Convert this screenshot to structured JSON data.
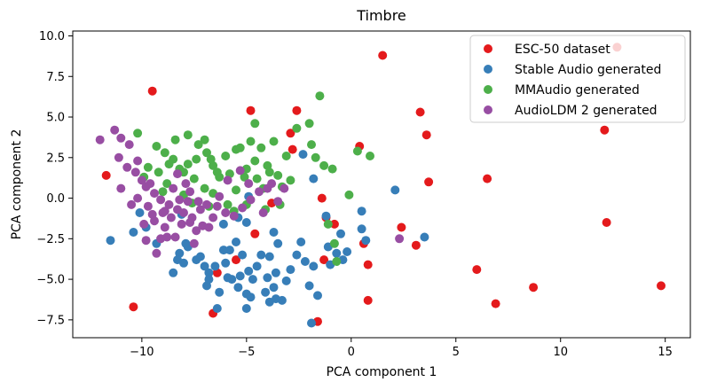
{
  "chart_data": {
    "type": "scatter",
    "title": "Timbre",
    "xlabel": "PCA component 1",
    "ylabel": "PCA component 2",
    "xlim": [
      -13.3,
      16.2
    ],
    "ylim": [
      -8.6,
      10.3
    ],
    "xticks": [
      -10,
      -5,
      0,
      5,
      10,
      15
    ],
    "xtick_labels": [
      "−10",
      "−5",
      "0",
      "5",
      "10",
      "15"
    ],
    "yticks": [
      -7.5,
      -5.0,
      -2.5,
      0.0,
      2.5,
      5.0,
      7.5,
      10.0
    ],
    "ytick_labels": [
      "−7.5",
      "−5.0",
      "−2.5",
      "0.0",
      "2.5",
      "5.0",
      "7.5",
      "10.0"
    ],
    "grid": false,
    "legend_position": "top-right",
    "series": [
      {
        "name": "ESC-50 dataset",
        "color": "#e41a1c",
        "points": [
          [
            12.7,
            9.3
          ],
          [
            1.5,
            8.8
          ],
          [
            -9.5,
            6.6
          ],
          [
            3.3,
            5.3
          ],
          [
            12.1,
            4.2
          ],
          [
            3.6,
            3.9
          ],
          [
            -2.6,
            5.4
          ],
          [
            -4.8,
            5.4
          ],
          [
            -2.9,
            4.0
          ],
          [
            -2.8,
            3.0
          ],
          [
            0.4,
            3.2
          ],
          [
            -11.7,
            1.4
          ],
          [
            3.7,
            1.0
          ],
          [
            6.5,
            1.2
          ],
          [
            -1.4,
            0.0
          ],
          [
            -3.8,
            -0.3
          ],
          [
            12.2,
            -1.5
          ],
          [
            -1.2,
            -1.2
          ],
          [
            2.4,
            -1.8
          ],
          [
            -0.8,
            -1.6
          ],
          [
            0.6,
            -2.8
          ],
          [
            3.1,
            -2.9
          ],
          [
            -1.3,
            -3.8
          ],
          [
            0.8,
            -4.1
          ],
          [
            -4.6,
            -2.2
          ],
          [
            -6.4,
            -4.6
          ],
          [
            6.0,
            -4.4
          ],
          [
            8.7,
            -5.5
          ],
          [
            14.8,
            -5.4
          ],
          [
            0.8,
            -6.3
          ],
          [
            6.9,
            -6.5
          ],
          [
            -10.4,
            -6.7
          ],
          [
            -6.6,
            -7.1
          ],
          [
            -1.6,
            -7.6
          ],
          [
            -5.5,
            -3.8
          ]
        ]
      },
      {
        "name": "Stable Audio generated",
        "color": "#377eb8",
        "points": [
          [
            -11.5,
            -2.6
          ],
          [
            -10.4,
            -2.1
          ],
          [
            -9.8,
            -1.8
          ],
          [
            -10.1,
            -0.9
          ],
          [
            -9.3,
            -2.8
          ],
          [
            -8.0,
            -4.0
          ],
          [
            -8.5,
            -4.6
          ],
          [
            -8.2,
            -3.4
          ],
          [
            -7.8,
            -3.0
          ],
          [
            -7.4,
            -3.8
          ],
          [
            -7.0,
            -4.2
          ],
          [
            -6.8,
            -4.6
          ],
          [
            -6.9,
            -5.4
          ],
          [
            -6.3,
            -5.8
          ],
          [
            -6.0,
            -4.0
          ],
          [
            -5.8,
            -3.2
          ],
          [
            -5.7,
            -5.0
          ],
          [
            -5.4,
            -5.5
          ],
          [
            -5.3,
            -4.8
          ],
          [
            -5.0,
            -5.9
          ],
          [
            -4.7,
            -5.0
          ],
          [
            -4.5,
            -4.2
          ],
          [
            -4.3,
            -3.5
          ],
          [
            -4.1,
            -5.8
          ],
          [
            -3.9,
            -6.4
          ],
          [
            -3.7,
            -5.5
          ],
          [
            -3.6,
            -4.6
          ],
          [
            -3.3,
            -6.3
          ],
          [
            -3.1,
            -5.1
          ],
          [
            -2.9,
            -4.4
          ],
          [
            -2.6,
            -3.5
          ],
          [
            -2.4,
            -2.7
          ],
          [
            -2.2,
            -3.9
          ],
          [
            -2.0,
            -5.4
          ],
          [
            -1.6,
            -6.0
          ],
          [
            -1.8,
            -4.2
          ],
          [
            -1.1,
            -3.0
          ],
          [
            -1.0,
            -4.1
          ],
          [
            -0.7,
            -3.4
          ],
          [
            -0.4,
            -3.8
          ],
          [
            -0.5,
            -2.2
          ],
          [
            -0.2,
            -3.3
          ],
          [
            -1.8,
            1.2
          ],
          [
            -1.2,
            -1.1
          ],
          [
            0.5,
            -0.8
          ],
          [
            0.5,
            -1.9
          ],
          [
            0.7,
            -2.6
          ],
          [
            2.1,
            0.5
          ],
          [
            3.5,
            -2.4
          ],
          [
            -2.3,
            2.7
          ],
          [
            -3.7,
            -2.1
          ],
          [
            -5.0,
            -1.5
          ],
          [
            -5.5,
            -2.7
          ],
          [
            -6.1,
            -3.2
          ],
          [
            -6.5,
            -4.2
          ],
          [
            -7.2,
            -3.6
          ],
          [
            -6.1,
            -1.6
          ],
          [
            -6.8,
            -5.0
          ],
          [
            -4.8,
            -6.1
          ],
          [
            -4.9,
            -4.5
          ],
          [
            -6.4,
            -6.8
          ],
          [
            -5.2,
            -3.5
          ],
          [
            -5.4,
            -1.2
          ],
          [
            -5.0,
            -6.8
          ],
          [
            -4.0,
            -4.9
          ],
          [
            -3.6,
            -6.2
          ],
          [
            -3.5,
            -2.8
          ],
          [
            -3.9,
            -3.6
          ],
          [
            -1.9,
            -7.7
          ],
          [
            -4.9,
            0.1
          ],
          [
            -5.9,
            -4.9
          ],
          [
            -7.9,
            -2.8
          ],
          [
            -8.3,
            -3.8
          ],
          [
            -8.1,
            -1.0
          ]
        ]
      },
      {
        "name": "MMAudio generated",
        "color": "#4daf4a",
        "points": [
          [
            -10.2,
            4.0
          ],
          [
            -9.3,
            3.2
          ],
          [
            -8.9,
            2.8
          ],
          [
            -8.4,
            3.6
          ],
          [
            -8.7,
            2.1
          ],
          [
            -7.8,
            3.9
          ],
          [
            -7.4,
            2.4
          ],
          [
            -7.0,
            3.6
          ],
          [
            -6.6,
            2.0
          ],
          [
            -6.3,
            1.3
          ],
          [
            -6.0,
            2.6
          ],
          [
            -5.8,
            1.5
          ],
          [
            -5.3,
            3.1
          ],
          [
            -5.0,
            1.8
          ],
          [
            -4.6,
            4.6
          ],
          [
            -4.8,
            3.5
          ],
          [
            -4.6,
            2.3
          ],
          [
            -4.5,
            1.2
          ],
          [
            -4.2,
            0.6
          ],
          [
            -3.7,
            3.5
          ],
          [
            -4.0,
            2.0
          ],
          [
            -3.5,
            1.4
          ],
          [
            -3.1,
            2.6
          ],
          [
            -3.3,
            0.7
          ],
          [
            -2.6,
            4.3
          ],
          [
            -2.0,
            4.6
          ],
          [
            -1.9,
            3.3
          ],
          [
            -1.7,
            2.5
          ],
          [
            -1.5,
            6.3
          ],
          [
            -1.3,
            2.0
          ],
          [
            -0.9,
            1.8
          ],
          [
            -9.7,
            1.9
          ],
          [
            -9.9,
            1.3
          ],
          [
            -8.2,
            1.8
          ],
          [
            -7.5,
            1.2
          ],
          [
            -7.0,
            0.6
          ],
          [
            -6.7,
            2.4
          ],
          [
            -6.4,
            1.6
          ],
          [
            -6.6,
            0.3
          ],
          [
            -5.5,
            0.5
          ],
          [
            -5.9,
            -0.4
          ],
          [
            -5.6,
            -0.8
          ],
          [
            -6.8,
            -0.5
          ],
          [
            -7.6,
            -0.3
          ],
          [
            -8.0,
            0.2
          ],
          [
            -8.8,
            0.9
          ],
          [
            -9.0,
            0.4
          ],
          [
            -4.1,
            -0.7
          ],
          [
            -3.4,
            -0.4
          ],
          [
            -0.1,
            0.2
          ],
          [
            0.3,
            2.9
          ],
          [
            0.9,
            2.6
          ],
          [
            -1.1,
            -1.6
          ],
          [
            -0.8,
            -2.8
          ],
          [
            -0.7,
            -3.9
          ],
          [
            -5.0,
            -0.4
          ],
          [
            -3.9,
            1.6
          ],
          [
            -2.9,
            1.1
          ],
          [
            -5.1,
            1.3
          ],
          [
            -5.5,
            3.0
          ],
          [
            -4.3,
            3.1
          ],
          [
            -7.3,
            3.3
          ],
          [
            -6.9,
            2.8
          ],
          [
            -8.0,
            1.6
          ],
          [
            -8.5,
            2.4
          ],
          [
            -7.8,
            2.1
          ],
          [
            -9.2,
            1.6
          ]
        ]
      },
      {
        "name": "AudioLDM 2 generated",
        "color": "#984ea3",
        "points": [
          [
            -12.0,
            3.6
          ],
          [
            -11.3,
            4.2
          ],
          [
            -11.0,
            3.7
          ],
          [
            -10.6,
            3.3
          ],
          [
            -11.1,
            2.5
          ],
          [
            -10.2,
            2.3
          ],
          [
            -10.7,
            1.9
          ],
          [
            -11.0,
            0.6
          ],
          [
            -10.3,
            1.6
          ],
          [
            -10.0,
            1.1
          ],
          [
            -9.8,
            0.7
          ],
          [
            -9.4,
            0.3
          ],
          [
            -9.7,
            -0.5
          ],
          [
            -9.4,
            -1.4
          ],
          [
            -9.1,
            -2.5
          ],
          [
            -9.3,
            -3.4
          ],
          [
            -9.8,
            -2.6
          ],
          [
            -8.9,
            -1.8
          ],
          [
            -8.7,
            -0.4
          ],
          [
            -8.5,
            0.6
          ],
          [
            -8.3,
            -0.7
          ],
          [
            -8.1,
            -1.6
          ],
          [
            -8.4,
            -2.4
          ],
          [
            -7.9,
            0.9
          ],
          [
            -7.8,
            -0.2
          ],
          [
            -7.6,
            -1.2
          ],
          [
            -7.4,
            -2.0
          ],
          [
            -7.5,
            -2.8
          ],
          [
            -7.1,
            -1.7
          ],
          [
            -6.9,
            -0.4
          ],
          [
            -6.6,
            -1.2
          ],
          [
            -6.4,
            -0.5
          ],
          [
            -6.0,
            -0.9
          ],
          [
            -5.6,
            -1.1
          ],
          [
            -5.2,
            -0.6
          ],
          [
            -4.8,
            -0.1
          ],
          [
            -4.4,
            0.4
          ],
          [
            -4.2,
            -0.9
          ],
          [
            -3.8,
            0.9
          ],
          [
            -3.5,
            -0.2
          ],
          [
            -9.0,
            -0.9
          ],
          [
            -8.6,
            -1.2
          ],
          [
            -8.2,
            -0.1
          ],
          [
            -7.2,
            -0.7
          ],
          [
            -6.8,
            -1.8
          ],
          [
            -8.8,
            -2.4
          ],
          [
            -9.5,
            -1.0
          ],
          [
            -9.9,
            -1.6
          ],
          [
            -10.5,
            -0.4
          ],
          [
            -10.2,
            0.0
          ],
          [
            -9.6,
            0.9
          ],
          [
            -8.3,
            1.5
          ],
          [
            -7.7,
            0.4
          ],
          [
            -6.3,
            0.1
          ],
          [
            -5.9,
            1.1
          ],
          [
            -5.3,
            1.7
          ],
          [
            -4.9,
            0.9
          ],
          [
            -4.0,
            0.6
          ],
          [
            -3.2,
            0.6
          ],
          [
            2.3,
            -2.5
          ],
          [
            -9.1,
            -0.1
          ],
          [
            -8.9,
            -0.8
          ],
          [
            -8.0,
            -0.9
          ],
          [
            -7.7,
            -1.5
          ],
          [
            -7.3,
            -0.2
          ]
        ]
      }
    ]
  }
}
